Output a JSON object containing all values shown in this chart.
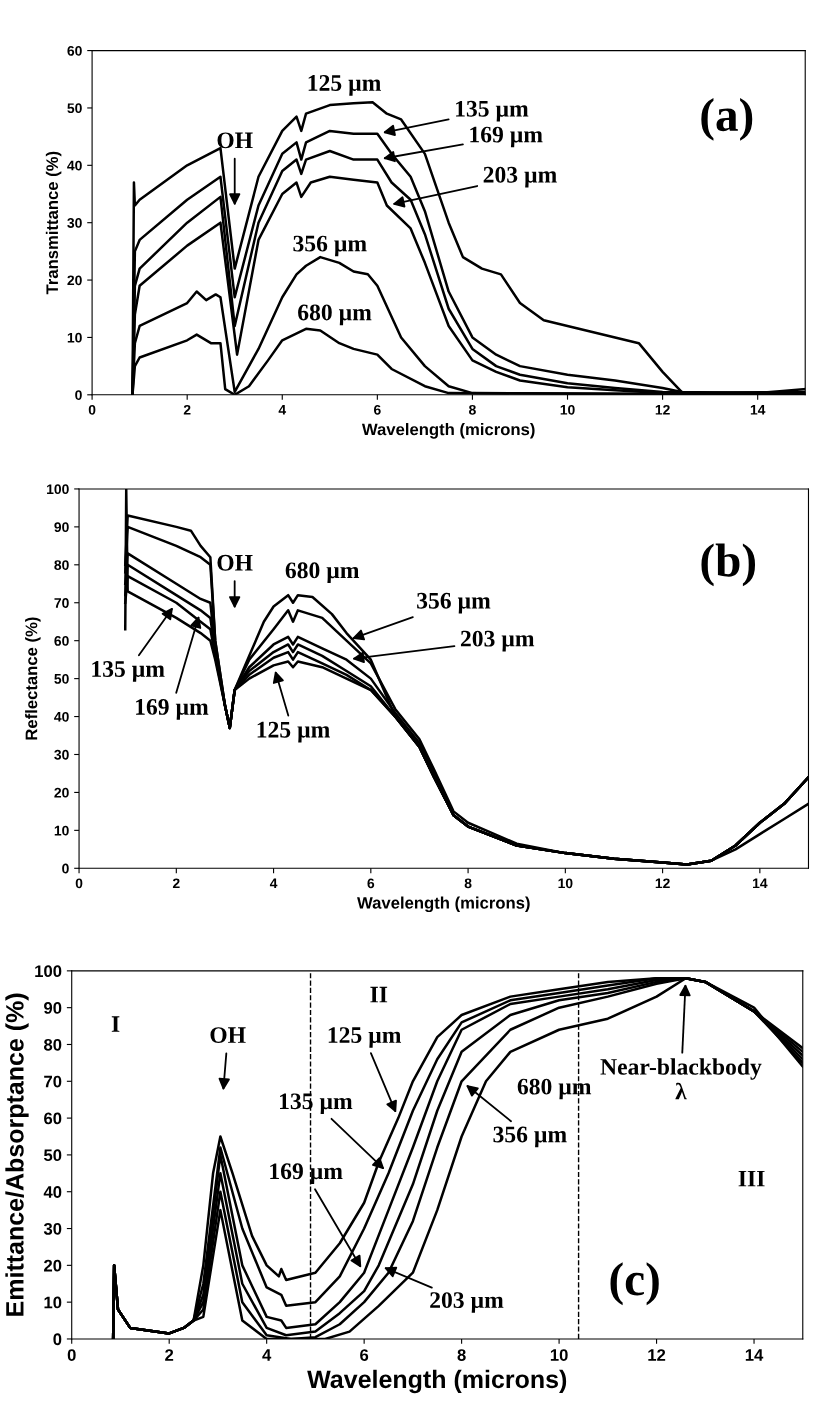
{
  "chart_data": [
    {
      "type": "line",
      "xlabel": "Wavelength (microns)",
      "ylabel": "Transmittance (%)",
      "xlim": [
        0,
        15
      ],
      "ylim": [
        0,
        60
      ],
      "xticks": [
        0,
        2,
        4,
        6,
        8,
        10,
        12,
        14
      ],
      "yticks": [
        0,
        10,
        20,
        30,
        40,
        50,
        60
      ],
      "grid": false,
      "legend": false,
      "marker": "none",
      "line_style": "solid",
      "annotations": [
        "(a)",
        "OH",
        "125 µm",
        {
          "text": "135 µm",
          "x": 6.0,
          "y": 45.5
        },
        {
          "text": "169 µm",
          "x": 6.0,
          "y": 41
        },
        {
          "text": "203 µm",
          "x": 6.2,
          "y": 33
        },
        "356 µm",
        "680 µm"
      ],
      "series": [
        {
          "color": "#000000",
          "x": [
            0.85,
            0.88,
            0.9,
            1,
            2,
            2.7,
            3.0,
            3.5,
            4,
            4.3,
            4.4,
            4.5,
            5,
            5.5,
            5.9,
            6.2,
            6.5,
            7,
            7.5,
            7.8,
            8.2,
            8.6,
            9,
            9.5,
            10,
            10.5,
            11,
            11.5,
            12,
            12.4,
            13,
            14,
            15
          ],
          "values": [
            0,
            37,
            33,
            34,
            40,
            43,
            22,
            38,
            46,
            48.5,
            46,
            49,
            50.5,
            50.8,
            51,
            49,
            48,
            42,
            30,
            24,
            22,
            21,
            16,
            13,
            12,
            11,
            10,
            9,
            4,
            0.5,
            0.3,
            0.3,
            1
          ]
        },
        {
          "color": "#000000",
          "x": [
            0.85,
            0.9,
            1,
            2,
            2.7,
            3.0,
            3.5,
            4,
            4.3,
            4.4,
            4.5,
            5,
            5.5,
            6,
            6.3,
            6.7,
            7,
            7.5,
            8,
            8.5,
            9,
            10,
            11,
            12,
            12.5,
            15
          ],
          "values": [
            0,
            25,
            27,
            34,
            38,
            17,
            33,
            42,
            44,
            41,
            44,
            46,
            45.5,
            45.5,
            42,
            38,
            32,
            18,
            10,
            7,
            5,
            3.5,
            2.5,
            1.2,
            0.3,
            0.5
          ]
        },
        {
          "color": "#000000",
          "x": [
            0.85,
            0.9,
            1,
            2,
            2.7,
            3.0,
            3.5,
            4,
            4.3,
            4.4,
            4.5,
            5,
            5.5,
            6,
            6.3,
            6.7,
            7,
            7.5,
            8,
            8.5,
            9,
            10,
            11,
            12,
            15
          ],
          "values": [
            0,
            19,
            22,
            30,
            34.5,
            12,
            30,
            39,
            41,
            38.5,
            41,
            42.5,
            41,
            41,
            37,
            34,
            28,
            15,
            8,
            5,
            3.5,
            2,
            1.2,
            0.5,
            0.3
          ]
        },
        {
          "color": "#000000",
          "x": [
            0.85,
            0.9,
            1,
            2,
            2.7,
            3.05,
            3.5,
            4,
            4.3,
            4.4,
            4.6,
            5,
            5.5,
            6,
            6.2,
            6.7,
            7,
            7.5,
            8,
            8.5,
            9,
            10,
            11,
            12,
            15
          ],
          "values": [
            0,
            14,
            19,
            26,
            30,
            7,
            27,
            35,
            37,
            34.5,
            37,
            38,
            37.5,
            37,
            33,
            29,
            23,
            12,
            6,
            4,
            2.5,
            1.3,
            0.8,
            0.3,
            0.2
          ]
        },
        {
          "color": "#000000",
          "x": [
            0.85,
            0.9,
            1,
            2,
            2.2,
            2.4,
            2.6,
            2.7,
            3.0,
            3.5,
            4,
            4.3,
            4.5,
            4.8,
            5.2,
            5.5,
            5.8,
            6,
            6.5,
            7,
            7.5,
            8,
            15
          ],
          "values": [
            0,
            9,
            12,
            16,
            18,
            16.5,
            17.5,
            17,
            0.5,
            8,
            17,
            21,
            22.5,
            24,
            23,
            21.5,
            21,
            19,
            10,
            5,
            1.5,
            0.3,
            0
          ]
        },
        {
          "color": "#000000",
          "x": [
            0.85,
            0.9,
            1,
            2,
            2.2,
            2.5,
            2.7,
            2.8,
            3.0,
            3.3,
            3.7,
            4,
            4.5,
            4.8,
            5.2,
            5.5,
            6,
            6.3,
            7,
            7.5,
            15
          ],
          "values": [
            0,
            5,
            6.5,
            9.5,
            10.5,
            9,
            9,
            1,
            0,
            1.5,
            6,
            9.5,
            11.5,
            11.2,
            9,
            8,
            7,
            4.5,
            1.5,
            0.3,
            0
          ]
        }
      ]
    },
    {
      "type": "line",
      "xlabel": "Wavelength (microns)",
      "ylabel": "Reflectance (%)",
      "xlim": [
        0,
        15
      ],
      "ylim": [
        0,
        100
      ],
      "xticks": [
        0,
        2,
        4,
        6,
        8,
        10,
        12,
        14
      ],
      "yticks": [
        0,
        10,
        20,
        30,
        40,
        50,
        60,
        70,
        80,
        90,
        100
      ],
      "grid": false,
      "legend": false,
      "marker": "none",
      "line_style": "solid",
      "annotations": [
        "(b)",
        "OH",
        "680 µm",
        {
          "text": "356 µm",
          "x": 5.5,
          "y": 60
        },
        {
          "text": "203 µm",
          "x": 5.5,
          "y": 55
        },
        {
          "text": "135 µm",
          "x": 2,
          "y": 70
        },
        {
          "text": "169 µm",
          "x": 2.5,
          "y": 68
        },
        {
          "text": "125 µm",
          "x": 4,
          "y": 53.5
        }
      ],
      "series": [
        {
          "color": "#000000",
          "x": [
            0.95,
            0.97,
            1,
            2,
            2.5,
            2.7,
            2.8,
            3.0,
            3.1,
            3.2,
            3.5,
            4,
            4.3,
            4.4,
            4.5,
            5,
            5.5,
            6,
            6.5,
            7,
            7.3,
            7.7,
            8,
            9,
            10,
            11,
            12,
            12.5,
            13,
            13.5,
            14,
            14.5,
            15
          ],
          "values": [
            63,
            100,
            73,
            66,
            62,
            60,
            55,
            43,
            37,
            47,
            50,
            53.5,
            54.5,
            53,
            54.5,
            53,
            50,
            47,
            40,
            32,
            24,
            14,
            11,
            6,
            4,
            2.5,
            1.5,
            1,
            2,
            6,
            12,
            17,
            24
          ]
        },
        {
          "color": "#000000",
          "x": [
            0.95,
            1,
            2,
            2.5,
            2.7,
            2.8,
            3.0,
            3.1,
            3.2,
            3.5,
            4,
            4.3,
            4.4,
            4.5,
            5,
            5.5,
            6,
            6.5,
            7,
            7.3,
            7.7,
            8,
            9,
            10,
            11,
            12,
            12.5,
            13,
            13.5,
            14,
            14.5,
            15
          ],
          "values": [
            70,
            77,
            70,
            65,
            63,
            56,
            43,
            37,
            47,
            51,
            55.5,
            57,
            55,
            57,
            54,
            51,
            47,
            40,
            32,
            24,
            14,
            11,
            6,
            4,
            2.5,
            1.5,
            1,
            2,
            6,
            12,
            17,
            24
          ]
        },
        {
          "color": "#000000",
          "x": [
            0.95,
            1,
            2,
            2.5,
            2.7,
            2.8,
            3.0,
            3.1,
            3.2,
            3.5,
            4,
            4.3,
            4.4,
            4.5,
            5,
            5.5,
            6,
            6.5,
            7,
            7.3,
            7.7,
            8,
            9,
            10,
            11,
            12,
            12.5,
            13,
            13.5,
            14,
            14.5,
            15
          ],
          "values": [
            72,
            80,
            72,
            68,
            66,
            57,
            43,
            37,
            47,
            52,
            57,
            59,
            57,
            59,
            56,
            52,
            48,
            40,
            32,
            24,
            14,
            11,
            6,
            4,
            2.5,
            1.5,
            1,
            2,
            6,
            12,
            17,
            24
          ]
        },
        {
          "color": "#000000",
          "x": [
            0.95,
            1,
            2,
            2.5,
            2.7,
            2.8,
            3.0,
            3.1,
            3.2,
            3.5,
            4,
            4.3,
            4.4,
            4.5,
            5,
            5.5,
            6,
            6.5,
            7,
            7.3,
            7.7,
            8,
            9,
            10,
            11,
            12,
            12.5,
            13,
            13.5,
            14,
            14.5,
            15
          ],
          "values": [
            75,
            83,
            75,
            71,
            70,
            58,
            43,
            37,
            47,
            53,
            59,
            61,
            59,
            61,
            58,
            55,
            50,
            41,
            33,
            25,
            14,
            11,
            6,
            4,
            2.5,
            1.5,
            1,
            2,
            6,
            12,
            17,
            24
          ]
        },
        {
          "color": "#000000",
          "x": [
            0.95,
            1,
            2,
            2.5,
            2.7,
            2.8,
            3.0,
            3.1,
            3.2,
            3.5,
            4,
            4.3,
            4.4,
            4.5,
            5,
            5.5,
            6,
            6.5,
            7,
            7.3,
            7.7,
            8,
            9,
            10,
            11,
            12,
            12.5,
            13,
            13.5,
            14,
            14.5,
            15
          ],
          "values": [
            78,
            90,
            85,
            82,
            80,
            60,
            43,
            37,
            47,
            55,
            63,
            68,
            65,
            68,
            66,
            60,
            54,
            42,
            34,
            26,
            15,
            12,
            6.5,
            4,
            2.5,
            1.5,
            1,
            2,
            5,
            9,
            13,
            17
          ]
        },
        {
          "color": "#000000",
          "x": [
            0.95,
            1,
            2,
            2.3,
            2.5,
            2.7,
            2.8,
            3.0,
            3.1,
            3.2,
            3.5,
            3.8,
            4,
            4.3,
            4.4,
            4.5,
            4.8,
            5.2,
            5.5,
            6,
            6.5,
            7,
            7.3,
            7.7,
            8,
            9,
            10,
            11,
            12,
            12.5,
            13,
            13.5,
            14,
            14.5,
            15
          ],
          "values": [
            80,
            93,
            90,
            89,
            85,
            82,
            60,
            43,
            37,
            47,
            56,
            65,
            69,
            72,
            70,
            72,
            71.5,
            67,
            62,
            55,
            40,
            32,
            24,
            14,
            11,
            6,
            4,
            2.5,
            1.5,
            1,
            2,
            6,
            12,
            17,
            24
          ]
        }
      ]
    },
    {
      "type": "line",
      "xlabel": "Wavelength (microns)",
      "ylabel": "Emittance/Absorptance (%)",
      "xlim": [
        0,
        15
      ],
      "ylim": [
        0,
        100
      ],
      "xticks": [
        0,
        2,
        4,
        6,
        8,
        10,
        12,
        14
      ],
      "yticks": [
        0,
        10,
        20,
        30,
        40,
        50,
        60,
        70,
        80,
        90,
        100
      ],
      "grid": false,
      "legend": false,
      "marker": "none",
      "line_style": "solid",
      "ref_lines": [
        {
          "axis": "x",
          "value": 4.9,
          "color": "#000000",
          "line_style": "dashed"
        },
        {
          "axis": "x",
          "value": 10.4,
          "color": "#000000",
          "line_style": "dashed"
        }
      ],
      "annotations": [
        "(c)",
        "I",
        "II",
        "III",
        "OH",
        {
          "text": "125 µm",
          "x": 6.7,
          "y": 60
        },
        {
          "text": "135 µm",
          "x": 6.5,
          "y": 45
        },
        {
          "text": "169 µm",
          "x": 6,
          "y": 18
        },
        {
          "text": "203 µm",
          "x": 6.3,
          "y": 20
        },
        "680 µm",
        {
          "text": "356 µm",
          "x": 8,
          "y": 70
        },
        {
          "text": "Near-blackbody\nλ",
          "x": 12.6,
          "y": 98
        }
      ],
      "series": [
        {
          "color": "#000000",
          "x": [
            0.85,
            0.87,
            0.95,
            1.2,
            2,
            2.3,
            2.5,
            2.7,
            2.9,
            3.05,
            3.3,
            3.7,
            4,
            4.25,
            4.3,
            4.4,
            5,
            5.5,
            6,
            6.3,
            6.7,
            7,
            7.5,
            8,
            9,
            10,
            11,
            12,
            12.6,
            13,
            14,
            15
          ],
          "values": [
            0,
            20,
            8,
            3,
            1.5,
            3,
            5,
            20,
            45,
            55,
            45,
            28,
            20,
            17,
            19,
            16,
            18,
            26,
            37,
            48,
            60,
            70,
            82,
            88,
            93,
            95,
            97,
            98,
            98,
            97,
            89,
            79
          ]
        },
        {
          "color": "#000000",
          "x": [
            0.85,
            0.87,
            0.95,
            1.2,
            2,
            2.3,
            2.5,
            2.7,
            3.05,
            3.5,
            4,
            4.3,
            4.4,
            5,
            5.5,
            6,
            6.5,
            7,
            7.5,
            8,
            9,
            10,
            11,
            12,
            12.6,
            13,
            14,
            15
          ],
          "values": [
            0,
            20,
            8,
            3,
            1.5,
            3,
            5,
            15,
            52,
            30,
            14,
            12,
            9,
            10,
            17,
            30,
            45,
            62,
            76,
            86,
            92,
            94,
            96,
            98,
            98,
            97,
            89,
            78
          ]
        },
        {
          "color": "#000000",
          "x": [
            0.85,
            0.87,
            0.95,
            1.2,
            2,
            2.3,
            2.5,
            2.7,
            3.05,
            3.5,
            4,
            4.3,
            4.4,
            5,
            5.5,
            6,
            6.5,
            7,
            7.5,
            8,
            9,
            10,
            11,
            12,
            12.6,
            13,
            14,
            15
          ],
          "values": [
            0,
            20,
            8,
            3,
            1.5,
            3,
            5,
            12,
            50,
            20,
            6,
            5,
            3,
            4,
            10,
            18,
            35,
            52,
            70,
            84,
            91,
            93,
            95,
            97.5,
            98,
            97,
            89,
            77
          ]
        },
        {
          "color": "#000000",
          "x": [
            0.85,
            0.87,
            0.95,
            1.2,
            2,
            2.3,
            2.5,
            2.7,
            3.05,
            3.5,
            4,
            4.4,
            5,
            5.5,
            6,
            6.3,
            7,
            7.5,
            8,
            9,
            10,
            11,
            12,
            12.6,
            13,
            14,
            15
          ],
          "values": [
            0,
            20,
            8,
            3,
            1.5,
            3,
            5,
            10,
            45,
            15,
            3,
            1,
            2,
            7,
            13,
            20,
            42,
            62,
            78,
            88,
            92,
            94,
            97,
            98,
            97,
            89,
            76
          ]
        },
        {
          "color": "#000000",
          "x": [
            0.85,
            0.87,
            0.95,
            1.2,
            2,
            2.3,
            2.5,
            2.7,
            3.05,
            3.5,
            4,
            4.5,
            5,
            5.5,
            6,
            6.5,
            7,
            7.5,
            8,
            9,
            10,
            11,
            12,
            12.6,
            13,
            14,
            15
          ],
          "values": [
            0,
            20,
            8,
            3,
            1.5,
            3,
            5,
            8,
            40,
            10,
            1,
            0,
            0.5,
            4,
            10,
            18,
            32,
            52,
            70,
            84,
            90,
            93,
            96.5,
            98,
            97,
            89,
            75
          ]
        },
        {
          "color": "#000000",
          "x": [
            0.85,
            0.87,
            0.95,
            1.2,
            2,
            2.3,
            2.5,
            2.7,
            3.05,
            3.5,
            4,
            5.2,
            5.7,
            6.3,
            7,
            7.5,
            8,
            8.5,
            9,
            10,
            11,
            12,
            12.6,
            13,
            14,
            15
          ],
          "values": [
            0,
            20,
            8,
            3,
            1.5,
            3,
            5,
            6,
            35,
            5,
            0,
            0,
            2,
            9,
            18,
            35,
            55,
            70,
            78,
            84,
            87,
            93,
            98,
            97,
            90,
            74
          ]
        }
      ]
    }
  ]
}
